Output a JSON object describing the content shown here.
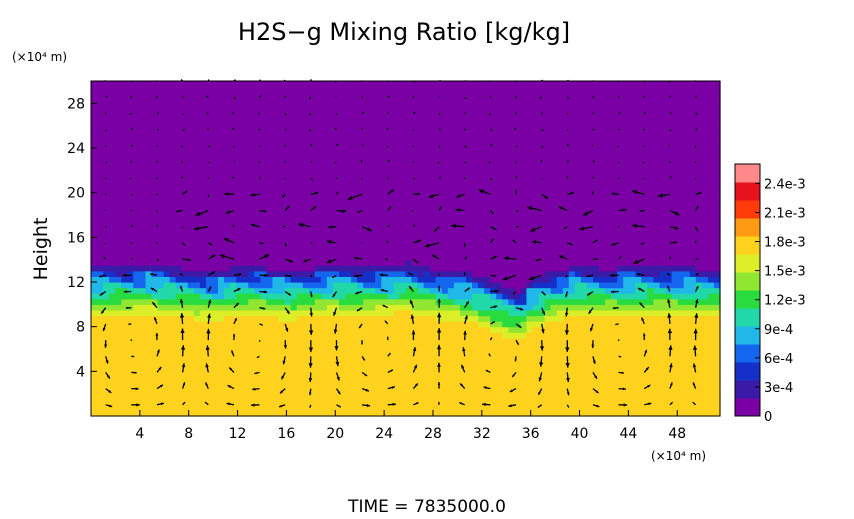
{
  "chart_data": {
    "type": "heatmap",
    "title": "H2S−g Mixing Ratio [kg/kg]",
    "ylabel": "Height",
    "y_unit": "(×10⁴ m)",
    "x_unit": "(×10⁴ m)",
    "footer": "TIME  =  7835000.0",
    "xlim": [
      0,
      51.5
    ],
    "ylim": [
      0,
      30
    ],
    "x_ticks": [
      4,
      8,
      12,
      16,
      20,
      24,
      28,
      32,
      36,
      40,
      44,
      48
    ],
    "y_ticks": [
      4,
      8,
      12,
      16,
      20,
      24,
      28
    ],
    "field": {
      "upper_value": 0,
      "lower_value": 0.0017,
      "interface_height": [
        [
          0,
          13.3
        ],
        [
          2,
          13.5
        ],
        [
          4,
          13.6
        ],
        [
          6,
          13.4
        ],
        [
          8,
          13.2
        ],
        [
          10,
          13.0
        ],
        [
          12,
          13.4
        ],
        [
          14,
          13.3
        ],
        [
          16,
          13.1
        ],
        [
          18,
          13.2
        ],
        [
          20,
          13.6
        ],
        [
          22,
          13.4
        ],
        [
          24,
          13.5
        ],
        [
          26,
          13.8
        ],
        [
          28,
          13.2
        ],
        [
          30,
          13.0
        ],
        [
          32,
          12.5
        ],
        [
          34,
          11.6
        ],
        [
          35,
          11.2
        ],
        [
          36,
          12.2
        ],
        [
          38,
          13.0
        ],
        [
          40,
          13.4
        ],
        [
          42,
          13.2
        ],
        [
          44,
          13.3
        ],
        [
          46,
          13.5
        ],
        [
          48,
          13.3
        ],
        [
          51.5,
          13.2
        ]
      ],
      "mixing_layer_depth": 4.5,
      "arrow_field_type": "velocity"
    },
    "colorbar": {
      "min": 0,
      "max": 0.0026,
      "ticks": [
        {
          "value": 0,
          "label": "0"
        },
        {
          "value": 0.0003,
          "label": "3e-4"
        },
        {
          "value": 0.0006,
          "label": "6e-4"
        },
        {
          "value": 0.0009,
          "label": "9e-4"
        },
        {
          "value": 0.0012,
          "label": "1.2e-3"
        },
        {
          "value": 0.0015,
          "label": "1.5e-3"
        },
        {
          "value": 0.0018,
          "label": "1.8e-3"
        },
        {
          "value": 0.0021,
          "label": "2.1e-3"
        },
        {
          "value": 0.0024,
          "label": "2.4e-3"
        }
      ],
      "colors": [
        "#7a00a6",
        "#3c1aa8",
        "#1530c8",
        "#1466ee",
        "#20b8e8",
        "#20d8a8",
        "#28dc40",
        "#90e630",
        "#dcee28",
        "#ffd21e",
        "#ff9a14",
        "#ff3c0a",
        "#e6121e",
        "#ff8888"
      ]
    }
  }
}
